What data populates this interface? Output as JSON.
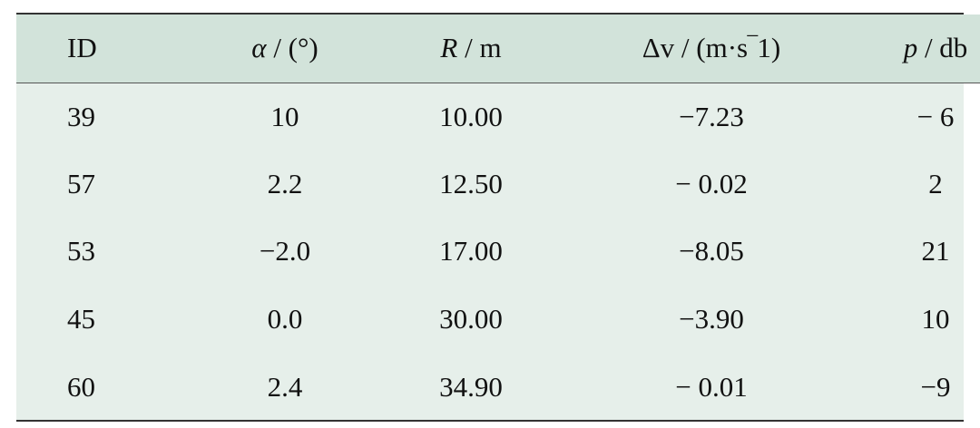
{
  "table": {
    "headers": [
      {
        "symbol": "ID",
        "unit": ""
      },
      {
        "symbol": "α",
        "unit": " / (°)"
      },
      {
        "symbol": "R",
        "unit": " / m"
      },
      {
        "symbol": "Δv",
        "unit": " / (m·s‾1)"
      },
      {
        "symbol": "p",
        "unit": " / db"
      }
    ],
    "rows": [
      [
        "39",
        "10",
        "10.00",
        "−7.23",
        "− 6"
      ],
      [
        "57",
        "2.2",
        "12.50",
        "− 0.02",
        "2"
      ],
      [
        "53",
        "−2.0",
        "17.00",
        "−8.05",
        "21"
      ],
      [
        "45",
        "0.0",
        "30.00",
        "−3.90",
        "10"
      ],
      [
        "60",
        "2.4",
        "34.90",
        "− 0.01",
        "−9"
      ]
    ]
  }
}
